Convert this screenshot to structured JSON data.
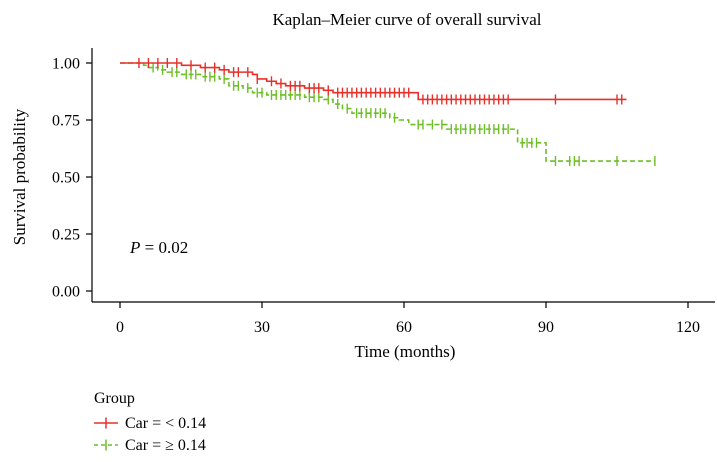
{
  "chart_data": {
    "type": "line",
    "title": "Kaplan–Meier curve of overall survival",
    "xlabel": "Time (months)",
    "ylabel": "Survival probability",
    "xlim": [
      0,
      120
    ],
    "ylim": [
      0,
      1
    ],
    "x_ticks": [
      "0",
      "30",
      "60",
      "90",
      "120"
    ],
    "y_ticks": [
      "0.00",
      "0.25",
      "0.50",
      "0.75",
      "1.00"
    ],
    "grid": false,
    "annotation": {
      "p_label": "P",
      "p_value": " = 0.02"
    },
    "legend": {
      "title": "Group",
      "placement": "bottom-left",
      "entries": [
        "Car = < 0.14",
        "Car = ≥ 0.14"
      ]
    },
    "series": [
      {
        "name": "Car = < 0.14",
        "color": "#e8302a",
        "dashed": false,
        "steps": [
          [
            0,
            1.0
          ],
          [
            13,
            0.99
          ],
          [
            17,
            0.98
          ],
          [
            21,
            0.97
          ],
          [
            23,
            0.96
          ],
          [
            26,
            0.96
          ],
          [
            28,
            0.95
          ],
          [
            29,
            0.93
          ],
          [
            31,
            0.92
          ],
          [
            33,
            0.91
          ],
          [
            35,
            0.9
          ],
          [
            39,
            0.89
          ],
          [
            43,
            0.88
          ],
          [
            45,
            0.87
          ],
          [
            61,
            0.87
          ],
          [
            63,
            0.84
          ],
          [
            107,
            0.84
          ]
        ],
        "censor": [
          4,
          6,
          8,
          10,
          12,
          15,
          18,
          20,
          22,
          24,
          25,
          27,
          29,
          32,
          34,
          36,
          37,
          38,
          40,
          41,
          42,
          44,
          46,
          47,
          48,
          49,
          50,
          51,
          52,
          53,
          54,
          55,
          56,
          57,
          58,
          59,
          60,
          61,
          64,
          65,
          66,
          67,
          68,
          69,
          70,
          71,
          72,
          73,
          74,
          75,
          76,
          77,
          78,
          79,
          80,
          81,
          82,
          92,
          105,
          106
        ]
      },
      {
        "name": "Car = ≥ 0.14",
        "color": "#6cbf26",
        "dashed": true,
        "steps": [
          [
            0,
            1.0
          ],
          [
            5,
            0.99
          ],
          [
            6,
            0.98
          ],
          [
            8,
            0.97
          ],
          [
            10,
            0.96
          ],
          [
            13,
            0.95
          ],
          [
            17,
            0.94
          ],
          [
            21,
            0.93
          ],
          [
            23,
            0.9
          ],
          [
            26,
            0.89
          ],
          [
            28,
            0.87
          ],
          [
            31,
            0.86
          ],
          [
            39,
            0.85
          ],
          [
            43,
            0.84
          ],
          [
            45,
            0.82
          ],
          [
            47,
            0.8
          ],
          [
            49,
            0.78
          ],
          [
            57,
            0.76
          ],
          [
            59,
            0.75
          ],
          [
            61,
            0.73
          ],
          [
            67,
            0.73
          ],
          [
            69,
            0.71
          ],
          [
            84,
            0.65
          ],
          [
            90,
            0.57
          ],
          [
            113,
            0.57
          ]
        ],
        "censor": [
          7,
          9,
          11,
          12,
          14,
          15,
          16,
          18,
          19,
          20,
          22,
          24,
          25,
          27,
          29,
          30,
          32,
          33,
          34,
          35,
          36,
          37,
          38,
          40,
          41,
          42,
          44,
          46,
          48,
          50,
          51,
          52,
          53,
          54,
          55,
          56,
          58,
          63,
          64,
          66,
          68,
          70,
          71,
          72,
          73,
          74,
          75,
          76,
          77,
          78,
          79,
          80,
          81,
          82,
          85,
          86,
          87,
          88,
          92,
          95,
          96,
          97,
          105,
          113
        ]
      }
    ]
  }
}
